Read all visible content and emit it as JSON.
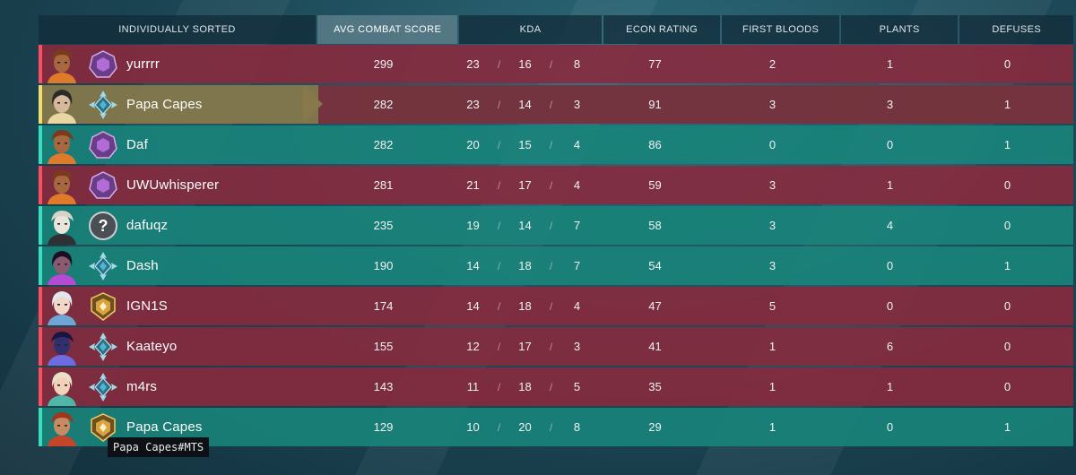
{
  "columns": {
    "player": "INDIVIDUALLY SORTED",
    "acs": "AVG COMBAT SCORE",
    "kda": "KDA",
    "econ": "ECON RATING",
    "first_bloods": "FIRST BLOODS",
    "plants": "PLANTS",
    "defuses": "DEFUSES"
  },
  "kda_separator": "/",
  "players": [
    {
      "name": "yurrrr",
      "team": "red",
      "agent_icon": "raze-portrait-icon",
      "rank_icon": "amethyst-rank-icon",
      "acs": "299",
      "kills": "23",
      "deaths": "16",
      "assists": "8",
      "econ": "77",
      "first_bloods": "2",
      "plants": "1",
      "defuses": "0"
    },
    {
      "name": "Papa Capes",
      "team": "self",
      "agent_icon": "chamber-portrait-icon",
      "rank_icon": "teal-rank-icon",
      "acs": "282",
      "kills": "23",
      "deaths": "14",
      "assists": "3",
      "econ": "91",
      "first_bloods": "3",
      "plants": "3",
      "defuses": "1"
    },
    {
      "name": "Daf",
      "team": "green",
      "agent_icon": "raze-portrait-icon",
      "rank_icon": "amethyst-rank-icon",
      "acs": "282",
      "kills": "20",
      "deaths": "15",
      "assists": "4",
      "econ": "86",
      "first_bloods": "0",
      "plants": "0",
      "defuses": "1"
    },
    {
      "name": "UWUwhisperer",
      "team": "red",
      "agent_icon": "raze-portrait-icon",
      "rank_icon": "amethyst-rank-icon",
      "acs": "281",
      "kills": "21",
      "deaths": "17",
      "assists": "4",
      "econ": "59",
      "first_bloods": "3",
      "plants": "1",
      "defuses": "0"
    },
    {
      "name": "dafuqz",
      "team": "green",
      "agent_icon": "cypher-portrait-icon",
      "rank_icon": "unknown-rank-icon",
      "acs": "235",
      "kills": "19",
      "deaths": "14",
      "assists": "7",
      "econ": "58",
      "first_bloods": "3",
      "plants": "4",
      "defuses": "0"
    },
    {
      "name": "Dash",
      "team": "green",
      "agent_icon": "reyna-portrait-icon",
      "rank_icon": "teal-rank-icon",
      "acs": "190",
      "kills": "14",
      "deaths": "18",
      "assists": "7",
      "econ": "54",
      "first_bloods": "3",
      "plants": "0",
      "defuses": "1"
    },
    {
      "name": "IGN1S",
      "team": "red",
      "agent_icon": "jett-portrait-icon",
      "rank_icon": "gold-rank-icon",
      "acs": "174",
      "kills": "14",
      "deaths": "18",
      "assists": "4",
      "econ": "47",
      "first_bloods": "5",
      "plants": "0",
      "defuses": "0"
    },
    {
      "name": "Kaateyo",
      "team": "red",
      "agent_icon": "omen-portrait-icon",
      "rank_icon": "teal-rank-icon",
      "acs": "155",
      "kills": "12",
      "deaths": "17",
      "assists": "3",
      "econ": "41",
      "first_bloods": "1",
      "plants": "6",
      "defuses": "0"
    },
    {
      "name": "m4rs",
      "team": "red",
      "agent_icon": "sage-portrait-icon",
      "rank_icon": "teal-rank-icon",
      "acs": "143",
      "kills": "11",
      "deaths": "18",
      "assists": "5",
      "econ": "35",
      "first_bloods": "1",
      "plants": "1",
      "defuses": "0"
    },
    {
      "name": "Papa Capes",
      "team": "green",
      "agent_icon": "brimstone-portrait-icon",
      "rank_icon": "gold-rank-icon",
      "acs": "129",
      "kills": "10",
      "deaths": "20",
      "assists": "8",
      "econ": "29",
      "first_bloods": "1",
      "plants": "0",
      "defuses": "1"
    }
  ],
  "tooltip": "Papa Capes#MTS",
  "colors": {
    "enemy_row": "#882a3e",
    "ally_row": "#18847a",
    "self_row": "#887a4c",
    "amethyst_rank": "#b26cd8",
    "teal_rank": "#4fb6cf",
    "gold_rank": "#d9a340"
  }
}
